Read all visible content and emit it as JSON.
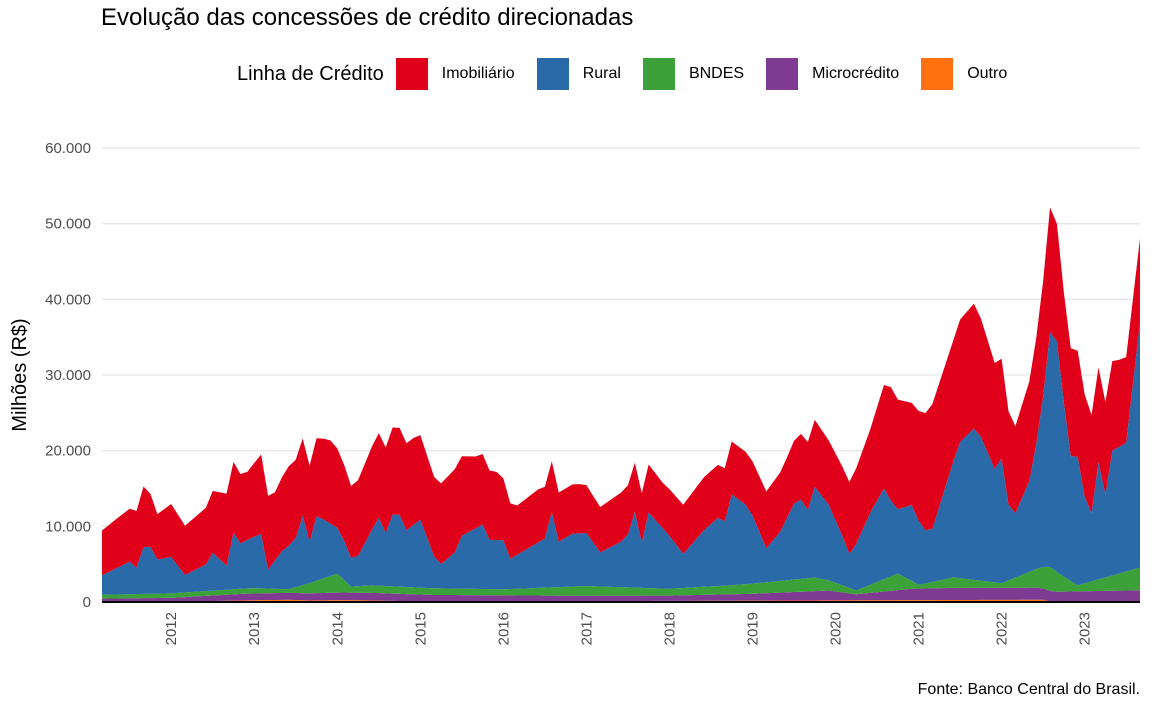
{
  "chart_data": {
    "type": "area",
    "stacked": true,
    "title": "Evolução das concessões de crédito direcionadas",
    "ylabel": "Milhões (R$)",
    "xlabel": "",
    "legend_title": "Linha de Crédito",
    "legend_position": "top",
    "caption": "Fonte: Banco Central do Brasil.",
    "ylim": [
      0,
      60000
    ],
    "y_ticks": [
      0,
      10000,
      20000,
      30000,
      40000,
      50000,
      60000
    ],
    "y_tick_labels": [
      "0",
      "10.000",
      "20.000",
      "30.000",
      "40.000",
      "50.000",
      "60.000"
    ],
    "x_tick_labels": [
      "2012",
      "2013",
      "2014",
      "2015",
      "2016",
      "2017",
      "2018",
      "2019",
      "2020",
      "2021",
      "2022",
      "2023"
    ],
    "x_start": "2011-03",
    "x_end": "2023-09",
    "grid": "horizontal",
    "colors": {
      "Imobiliário": "#E0001A",
      "Rural": "#2B6AA9",
      "BNDES": "#3DA13A",
      "Microcrédito": "#7F3A91",
      "Outro": "#FF700F"
    },
    "series": [
      {
        "name": "Outro",
        "values": [
          {
            "x": "2011-03",
            "y": 50
          },
          {
            "x": "2012-01",
            "y": 50
          },
          {
            "x": "2013-06",
            "y": 300
          },
          {
            "x": "2013-09",
            "y": 200
          },
          {
            "x": "2014-02",
            "y": 250
          },
          {
            "x": "2014-06",
            "y": 200
          },
          {
            "x": "2015-03",
            "y": 50
          },
          {
            "x": "2022-07",
            "y": 300
          },
          {
            "x": "2022-08",
            "y": 50
          },
          {
            "x": "2023-09",
            "y": 50
          }
        ]
      },
      {
        "name": "Microcrédito",
        "values": [
          {
            "x": "2011-03",
            "y": 400
          },
          {
            "x": "2012-01",
            "y": 500
          },
          {
            "x": "2012-12",
            "y": 900
          },
          {
            "x": "2013-06",
            "y": 900
          },
          {
            "x": "2014-01",
            "y": 1000
          },
          {
            "x": "2014-06",
            "y": 1000
          },
          {
            "x": "2015-01",
            "y": 900
          },
          {
            "x": "2016-01",
            "y": 800
          },
          {
            "x": "2017-01",
            "y": 700
          },
          {
            "x": "2018-01",
            "y": 700
          },
          {
            "x": "2019-01",
            "y": 900
          },
          {
            "x": "2019-12",
            "y": 1300
          },
          {
            "x": "2020-04",
            "y": 800
          },
          {
            "x": "2020-12",
            "y": 1500
          },
          {
            "x": "2021-06",
            "y": 1600
          },
          {
            "x": "2022-06",
            "y": 1600
          },
          {
            "x": "2022-09",
            "y": 1300
          },
          {
            "x": "2023-09",
            "y": 1500
          }
        ]
      },
      {
        "name": "BNDES",
        "values": [
          {
            "x": "2011-03",
            "y": 500
          },
          {
            "x": "2012-01",
            "y": 600
          },
          {
            "x": "2013-01",
            "y": 700
          },
          {
            "x": "2013-06",
            "y": 500
          },
          {
            "x": "2014-01",
            "y": 2500
          },
          {
            "x": "2014-03",
            "y": 800
          },
          {
            "x": "2014-06",
            "y": 1000
          },
          {
            "x": "2015-01",
            "y": 900
          },
          {
            "x": "2016-01",
            "y": 800
          },
          {
            "x": "2017-01",
            "y": 1300
          },
          {
            "x": "2018-01",
            "y": 900
          },
          {
            "x": "2018-10",
            "y": 1200
          },
          {
            "x": "2019-10",
            "y": 1800
          },
          {
            "x": "2020-04",
            "y": 500
          },
          {
            "x": "2020-10",
            "y": 2200
          },
          {
            "x": "2021-01",
            "y": 500
          },
          {
            "x": "2021-06",
            "y": 1400
          },
          {
            "x": "2022-01",
            "y": 600
          },
          {
            "x": "2022-08",
            "y": 3200
          },
          {
            "x": "2022-12",
            "y": 800
          },
          {
            "x": "2023-09",
            "y": 3000
          }
        ]
      },
      {
        "name": "Rural",
        "values": [
          {
            "x": "2011-03",
            "y": 2600
          },
          {
            "x": "2011-04",
            "y": 3000
          },
          {
            "x": "2011-07",
            "y": 4300
          },
          {
            "x": "2011-08",
            "y": 3500
          },
          {
            "x": "2011-09",
            "y": 6200
          },
          {
            "x": "2011-10",
            "y": 6200
          },
          {
            "x": "2011-11",
            "y": 4500
          },
          {
            "x": "2012-01",
            "y": 4800
          },
          {
            "x": "2012-03",
            "y": 2300
          },
          {
            "x": "2012-06",
            "y": 3500
          },
          {
            "x": "2012-07",
            "y": 5000
          },
          {
            "x": "2012-09",
            "y": 3200
          },
          {
            "x": "2012-10",
            "y": 7500
          },
          {
            "x": "2012-11",
            "y": 6000
          },
          {
            "x": "2013-02",
            "y": 7200
          },
          {
            "x": "2013-03",
            "y": 2500
          },
          {
            "x": "2013-05",
            "y": 5000
          },
          {
            "x": "2013-07",
            "y": 6500
          },
          {
            "x": "2013-08",
            "y": 9200
          },
          {
            "x": "2013-09",
            "y": 5500
          },
          {
            "x": "2013-10",
            "y": 8500
          },
          {
            "x": "2013-11",
            "y": 7800
          },
          {
            "x": "2014-02",
            "y": 5200
          },
          {
            "x": "2014-03",
            "y": 3800
          },
          {
            "x": "2014-04",
            "y": 4000
          },
          {
            "x": "2014-07",
            "y": 9000
          },
          {
            "x": "2014-08",
            "y": 7000
          },
          {
            "x": "2014-09",
            "y": 9500
          },
          {
            "x": "2014-10",
            "y": 9500
          },
          {
            "x": "2014-11",
            "y": 7500
          },
          {
            "x": "2015-01",
            "y": 9000
          },
          {
            "x": "2015-03",
            "y": 4200
          },
          {
            "x": "2015-04",
            "y": 3200
          },
          {
            "x": "2015-06",
            "y": 4800
          },
          {
            "x": "2015-07",
            "y": 7000
          },
          {
            "x": "2015-09",
            "y": 8000
          },
          {
            "x": "2015-10",
            "y": 8500
          },
          {
            "x": "2015-11",
            "y": 6500
          },
          {
            "x": "2016-01",
            "y": 6500
          },
          {
            "x": "2016-02",
            "y": 4000
          },
          {
            "x": "2016-05",
            "y": 5500
          },
          {
            "x": "2016-07",
            "y": 6500
          },
          {
            "x": "2016-08",
            "y": 10000
          },
          {
            "x": "2016-09",
            "y": 6000
          },
          {
            "x": "2016-11",
            "y": 7000
          },
          {
            "x": "2017-01",
            "y": 7000
          },
          {
            "x": "2017-03",
            "y": 4500
          },
          {
            "x": "2017-06",
            "y": 6000
          },
          {
            "x": "2017-07",
            "y": 7000
          },
          {
            "x": "2017-08",
            "y": 10000
          },
          {
            "x": "2017-09",
            "y": 6000
          },
          {
            "x": "2017-10",
            "y": 10000
          },
          {
            "x": "2017-11",
            "y": 9000
          },
          {
            "x": "2018-01",
            "y": 7000
          },
          {
            "x": "2018-03",
            "y": 4500
          },
          {
            "x": "2018-06",
            "y": 7500
          },
          {
            "x": "2018-08",
            "y": 9000
          },
          {
            "x": "2018-09",
            "y": 8500
          },
          {
            "x": "2018-10",
            "y": 12000
          },
          {
            "x": "2018-12",
            "y": 10500
          },
          {
            "x": "2019-01",
            "y": 9000
          },
          {
            "x": "2019-03",
            "y": 4500
          },
          {
            "x": "2019-05",
            "y": 6500
          },
          {
            "x": "2019-07",
            "y": 10000
          },
          {
            "x": "2019-08",
            "y": 10500
          },
          {
            "x": "2019-09",
            "y": 9000
          },
          {
            "x": "2019-10",
            "y": 12000
          },
          {
            "x": "2019-12",
            "y": 10000
          },
          {
            "x": "2020-02",
            "y": 6500
          },
          {
            "x": "2020-03",
            "y": 4500
          },
          {
            "x": "2020-06",
            "y": 9500
          },
          {
            "x": "2020-08",
            "y": 12000
          },
          {
            "x": "2020-09",
            "y": 10000
          },
          {
            "x": "2020-10",
            "y": 8500
          },
          {
            "x": "2020-12",
            "y": 10000
          },
          {
            "x": "2021-02",
            "y": 7000
          },
          {
            "x": "2021-03",
            "y": 7000
          },
          {
            "x": "2021-07",
            "y": 18000
          },
          {
            "x": "2021-08",
            "y": 19000
          },
          {
            "x": "2021-09",
            "y": 20000
          },
          {
            "x": "2021-10",
            "y": 19000
          },
          {
            "x": "2021-12",
            "y": 15000
          },
          {
            "x": "2022-01",
            "y": 16500
          },
          {
            "x": "2022-02",
            "y": 10000
          },
          {
            "x": "2022-03",
            "y": 8500
          },
          {
            "x": "2022-05",
            "y": 12000
          },
          {
            "x": "2022-06",
            "y": 16500
          },
          {
            "x": "2022-07",
            "y": 22500
          },
          {
            "x": "2022-08",
            "y": 31000
          },
          {
            "x": "2022-09",
            "y": 30500
          },
          {
            "x": "2022-10",
            "y": 23000
          },
          {
            "x": "2022-11",
            "y": 16500
          },
          {
            "x": "2022-12",
            "y": 17000
          },
          {
            "x": "2023-01",
            "y": 11500
          },
          {
            "x": "2023-02",
            "y": 9000
          },
          {
            "x": "2023-03",
            "y": 15500
          },
          {
            "x": "2023-04",
            "y": 11000
          },
          {
            "x": "2023-05",
            "y": 16500
          },
          {
            "x": "2023-07",
            "y": 17000
          },
          {
            "x": "2023-09",
            "y": 32500
          }
        ]
      },
      {
        "name": "Imobiliário",
        "values": [
          {
            "x": "2011-03",
            "y": 5900
          },
          {
            "x": "2011-05",
            "y": 6500
          },
          {
            "x": "2011-07",
            "y": 7000
          },
          {
            "x": "2011-09",
            "y": 8000
          },
          {
            "x": "2011-11",
            "y": 6000
          },
          {
            "x": "2012-01",
            "y": 7000
          },
          {
            "x": "2012-03",
            "y": 6500
          },
          {
            "x": "2012-06",
            "y": 7500
          },
          {
            "x": "2012-09",
            "y": 9500
          },
          {
            "x": "2012-12",
            "y": 9000
          },
          {
            "x": "2013-02",
            "y": 10500
          },
          {
            "x": "2013-04",
            "y": 9000
          },
          {
            "x": "2013-06",
            "y": 10500
          },
          {
            "x": "2013-09",
            "y": 10000
          },
          {
            "x": "2013-12",
            "y": 11000
          },
          {
            "x": "2014-03",
            "y": 9500
          },
          {
            "x": "2014-06",
            "y": 11000
          },
          {
            "x": "2014-09",
            "y": 11500
          },
          {
            "x": "2014-12",
            "y": 11500
          },
          {
            "x": "2015-03",
            "y": 10500
          },
          {
            "x": "2015-06",
            "y": 11000
          },
          {
            "x": "2015-09",
            "y": 9500
          },
          {
            "x": "2015-12",
            "y": 9000
          },
          {
            "x": "2016-03",
            "y": 6500
          },
          {
            "x": "2016-06",
            "y": 7000
          },
          {
            "x": "2016-09",
            "y": 6500
          },
          {
            "x": "2016-12",
            "y": 6500
          },
          {
            "x": "2017-03",
            "y": 6000
          },
          {
            "x": "2017-06",
            "y": 6500
          },
          {
            "x": "2017-09",
            "y": 6500
          },
          {
            "x": "2017-12",
            "y": 6000
          },
          {
            "x": "2018-03",
            "y": 6500
          },
          {
            "x": "2018-06",
            "y": 7000
          },
          {
            "x": "2018-09",
            "y": 7000
          },
          {
            "x": "2018-12",
            "y": 7000
          },
          {
            "x": "2019-03",
            "y": 7500
          },
          {
            "x": "2019-06",
            "y": 8000
          },
          {
            "x": "2019-09",
            "y": 9000
          },
          {
            "x": "2019-12",
            "y": 8500
          },
          {
            "x": "2020-03",
            "y": 9500
          },
          {
            "x": "2020-06",
            "y": 11000
          },
          {
            "x": "2020-09",
            "y": 15000
          },
          {
            "x": "2020-12",
            "y": 13500
          },
          {
            "x": "2021-03",
            "y": 16500
          },
          {
            "x": "2021-06",
            "y": 16000
          },
          {
            "x": "2021-09",
            "y": 16500
          },
          {
            "x": "2021-12",
            "y": 14000
          },
          {
            "x": "2022-03",
            "y": 11500
          },
          {
            "x": "2022-06",
            "y": 14000
          },
          {
            "x": "2022-08",
            "y": 16500
          },
          {
            "x": "2022-10",
            "y": 14500
          },
          {
            "x": "2022-12",
            "y": 14000
          },
          {
            "x": "2023-03",
            "y": 12500
          },
          {
            "x": "2023-06",
            "y": 11500
          },
          {
            "x": "2023-09",
            "y": 11000
          }
        ]
      }
    ]
  }
}
